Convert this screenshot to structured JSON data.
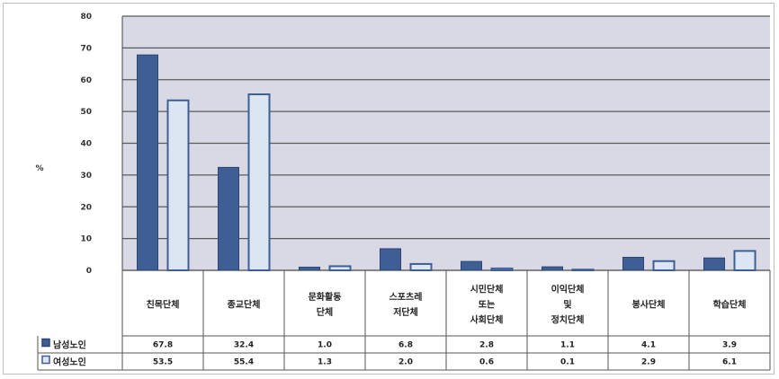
{
  "chart_data": {
    "type": "bar",
    "ylabel": "%",
    "ylim": [
      0,
      80
    ],
    "yticks": [
      0,
      10,
      20,
      30,
      40,
      50,
      60,
      70,
      80
    ],
    "grid": true,
    "categories": [
      [
        "친목단체"
      ],
      [
        "종교단체"
      ],
      [
        "문화활동",
        "단체"
      ],
      [
        "스포츠레",
        "저단체"
      ],
      [
        "시민단체",
        "또는",
        "사회단체"
      ],
      [
        "이익단체",
        "및",
        "정치단체"
      ],
      [
        "봉사단체"
      ],
      [
        "학습단체"
      ]
    ],
    "series": [
      {
        "name": "남성노인",
        "values": [
          67.8,
          32.4,
          1.0,
          6.8,
          2.8,
          1.1,
          4.1,
          3.9
        ],
        "labels": [
          "67.8",
          "32.4",
          "1.0",
          "6.8",
          "2.8",
          "1.1",
          "4.1",
          "3.9"
        ]
      },
      {
        "name": "여성노인",
        "values": [
          53.5,
          55.4,
          1.3,
          2.0,
          0.6,
          0.1,
          2.9,
          6.1
        ],
        "labels": [
          "53.5",
          "55.4",
          "1.3",
          "2.0",
          "0.6",
          "0.1",
          "2.9",
          "6.1"
        ]
      }
    ],
    "colors": {
      "male_fill": "#3f5f94",
      "male_stroke": "#2a4573",
      "female_fill": "#dce6f2",
      "female_stroke": "#3f5f94",
      "plot_bg": "#d9d9e6",
      "grid": "#5a5a5a"
    }
  }
}
